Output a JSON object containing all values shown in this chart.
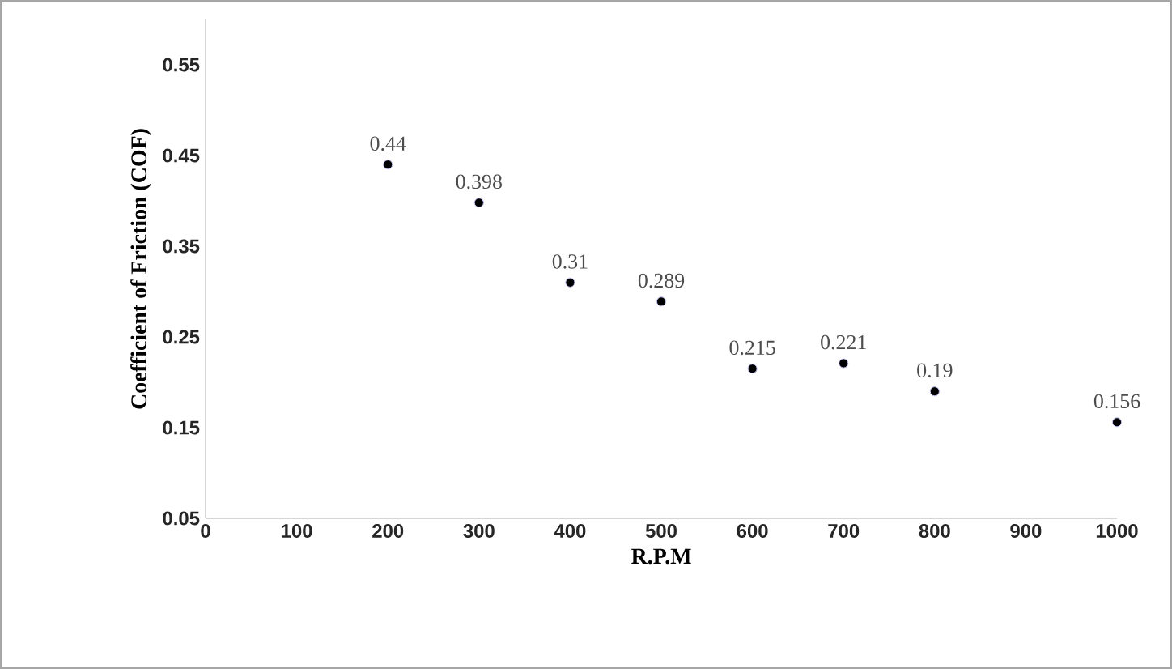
{
  "chart_data": {
    "type": "scatter",
    "xlabel": "R.P.M",
    "ylabel": "Coefficient of Friction (COF)",
    "x": [
      200,
      300,
      400,
      500,
      600,
      700,
      800,
      1000
    ],
    "values": [
      0.44,
      0.398,
      0.31,
      0.289,
      0.215,
      0.221,
      0.19,
      0.156
    ],
    "value_labels": [
      "0.44",
      "0.398",
      "0.31",
      "0.289",
      "0.215",
      "0.221",
      "0.19",
      "0.156"
    ],
    "color": "#000000",
    "marker": "circle",
    "xlim": [
      0,
      1000
    ],
    "xticks": [
      0,
      100,
      200,
      300,
      400,
      500,
      600,
      700,
      800,
      900,
      1000
    ],
    "ylim": [
      0.05,
      0.6
    ],
    "yticks": [
      0.05,
      0.15,
      0.25,
      0.35,
      0.45,
      0.55
    ],
    "grid": false
  }
}
